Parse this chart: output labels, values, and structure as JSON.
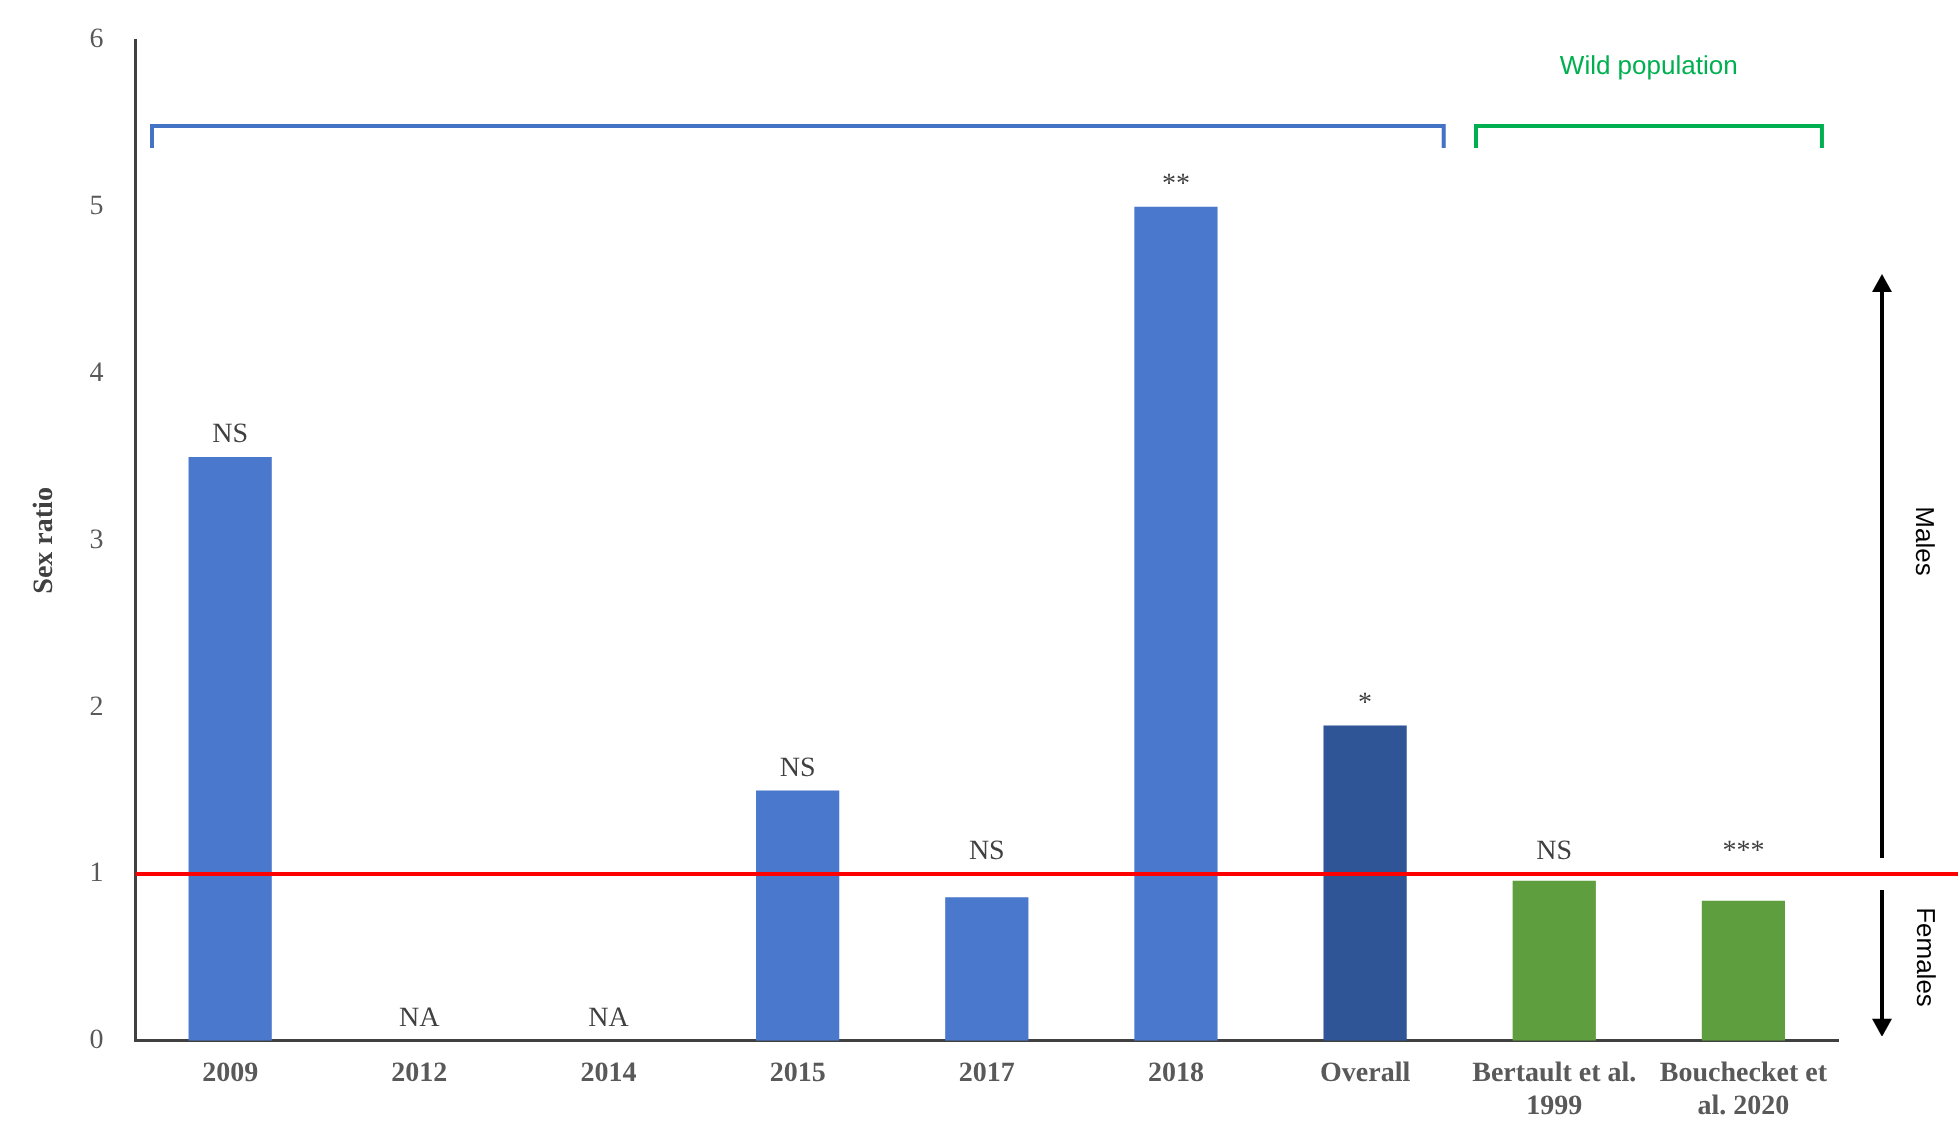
{
  "chart_data": {
    "type": "bar",
    "ylabel": "Sex ratio",
    "categories": [
      "2009",
      "2012",
      "2014",
      "2015",
      "2017",
      "2018",
      "Overall",
      "Bertault et al. 1999",
      "Bouchecket et al. 2020"
    ],
    "values": [
      3.5,
      null,
      null,
      1.5,
      0.86,
      5.0,
      1.89,
      0.96,
      0.84
    ],
    "colors": [
      "#4a78cc",
      "#4a78cc",
      "#4a78cc",
      "#4a78cc",
      "#4a78cc",
      "#4a78cc",
      "#2f5597",
      "#5e9e3e",
      "#5e9e3e"
    ],
    "ylim": [
      0,
      6
    ],
    "yticks": [
      0,
      1,
      2,
      3,
      4,
      5,
      6
    ],
    "grid": false,
    "legend": false,
    "ref_lines": [
      {
        "axis": "y",
        "value": 1,
        "color": "#ff0000"
      }
    ],
    "annotations": [
      {
        "text": "NS",
        "x": "2009",
        "y": 3.5
      },
      "NA",
      "NA",
      {
        "text": "NS",
        "x": "2015",
        "y": 1.5
      },
      {
        "text": "NS",
        "x": "2017",
        "y": 0.86
      },
      {
        "text": "**",
        "x": "2018",
        "y": 5.0
      },
      {
        "text": "*",
        "x": "Overall",
        "y": 1.89
      },
      {
        "text": "NS",
        "x": "Bertault et al. 1999",
        "y": 0.96
      },
      {
        "text": "***",
        "x": "Bouchecket et al. 2020",
        "y": 0.84
      },
      "Wild population",
      "Males",
      "Females"
    ]
  }
}
